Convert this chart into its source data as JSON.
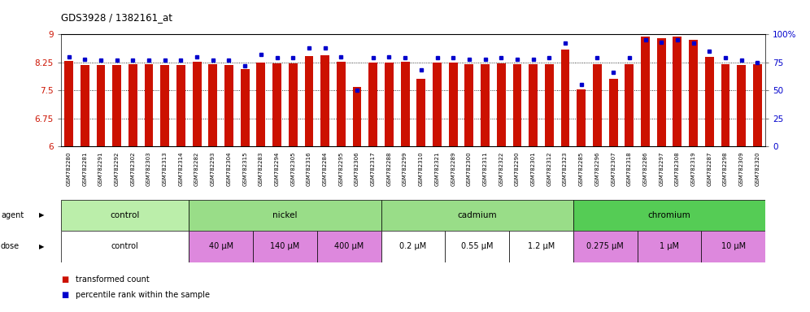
{
  "title": "GDS3928 / 1382161_at",
  "samples": [
    "GSM782280",
    "GSM782281",
    "GSM782291",
    "GSM782292",
    "GSM782302",
    "GSM782303",
    "GSM782313",
    "GSM782314",
    "GSM782282",
    "GSM782293",
    "GSM782304",
    "GSM782315",
    "GSM782283",
    "GSM782294",
    "GSM782305",
    "GSM782316",
    "GSM782284",
    "GSM782295",
    "GSM782306",
    "GSM782317",
    "GSM782288",
    "GSM782299",
    "GSM782310",
    "GSM782321",
    "GSM782289",
    "GSM782300",
    "GSM782311",
    "GSM782322",
    "GSM782290",
    "GSM782301",
    "GSM782312",
    "GSM782323",
    "GSM782285",
    "GSM782296",
    "GSM782307",
    "GSM782318",
    "GSM782286",
    "GSM782297",
    "GSM782308",
    "GSM782319",
    "GSM782287",
    "GSM782298",
    "GSM782309",
    "GSM782320"
  ],
  "bar_values": [
    8.28,
    8.18,
    8.19,
    8.19,
    8.2,
    8.2,
    8.19,
    8.18,
    8.27,
    8.2,
    8.19,
    8.07,
    8.25,
    8.22,
    8.22,
    8.42,
    8.44,
    8.27,
    7.6,
    8.24,
    8.25,
    8.27,
    7.82,
    8.24,
    8.25,
    8.2,
    8.2,
    8.22,
    8.2,
    8.2,
    8.21,
    8.6,
    7.52,
    8.2,
    7.82,
    8.2,
    8.93,
    8.9,
    8.93,
    8.85,
    8.4,
    8.2,
    8.19,
    8.2
  ],
  "percentile_values": [
    80,
    78,
    77,
    77,
    77,
    77,
    77,
    77,
    80,
    77,
    77,
    72,
    82,
    79,
    79,
    88,
    88,
    80,
    50,
    79,
    80,
    79,
    68,
    79,
    79,
    78,
    78,
    79,
    78,
    78,
    79,
    92,
    55,
    79,
    66,
    79,
    95,
    93,
    95,
    92,
    85,
    79,
    77,
    75
  ],
  "ylim_left": [
    6,
    9
  ],
  "ylim_right": [
    0,
    100
  ],
  "yticks_left": [
    6,
    6.75,
    7.5,
    8.25,
    9
  ],
  "yticks_right": [
    0,
    25,
    50,
    75,
    100
  ],
  "bar_color": "#cc1100",
  "dot_color": "#0000cc",
  "agent_groups": [
    {
      "label": "control",
      "start": 0,
      "end": 8,
      "color": "#bbeeaa"
    },
    {
      "label": "nickel",
      "start": 8,
      "end": 20,
      "color": "#99dd88"
    },
    {
      "label": "cadmium",
      "start": 20,
      "end": 32,
      "color": "#99dd88"
    },
    {
      "label": "chromium",
      "start": 32,
      "end": 44,
      "color": "#55cc55"
    }
  ],
  "dose_groups": [
    {
      "label": "control",
      "start": 0,
      "end": 8,
      "color": "#ffffff"
    },
    {
      "label": "40 μM",
      "start": 8,
      "end": 12,
      "color": "#dd88dd"
    },
    {
      "label": "140 μM",
      "start": 12,
      "end": 16,
      "color": "#dd88dd"
    },
    {
      "label": "400 μM",
      "start": 16,
      "end": 20,
      "color": "#dd88dd"
    },
    {
      "label": "0.2 μM",
      "start": 20,
      "end": 24,
      "color": "#ffffff"
    },
    {
      "label": "0.55 μM",
      "start": 24,
      "end": 28,
      "color": "#ffffff"
    },
    {
      "label": "1.2 μM",
      "start": 28,
      "end": 32,
      "color": "#ffffff"
    },
    {
      "label": "0.275 μM",
      "start": 32,
      "end": 36,
      "color": "#dd88dd"
    },
    {
      "label": "1 μM",
      "start": 36,
      "end": 40,
      "color": "#dd88dd"
    },
    {
      "label": "10 μM",
      "start": 40,
      "end": 44,
      "color": "#dd88dd"
    }
  ],
  "legend_items": [
    {
      "label": "transformed count",
      "color": "#cc1100"
    },
    {
      "label": "percentile rank within the sample",
      "color": "#0000cc"
    }
  ],
  "bg_color": "#ffffff",
  "plot_bg": "#ffffff"
}
